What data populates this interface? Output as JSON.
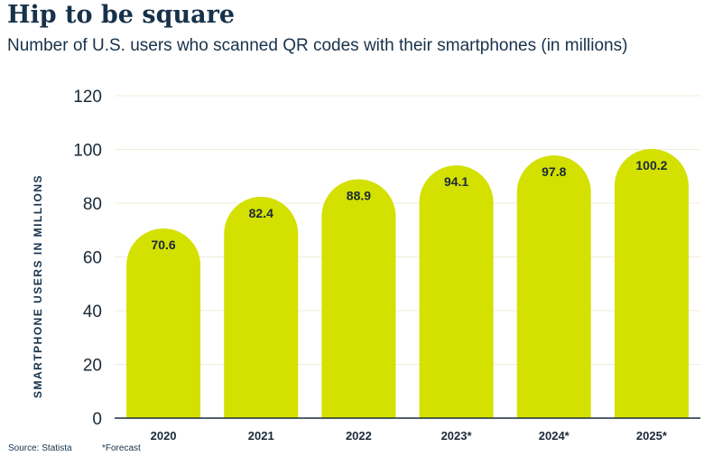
{
  "title": "Hip to be square",
  "subtitle": "Number of U.S. users who scanned QR codes with their smartphones (in millions)",
  "footer": {
    "source": "Source: Statista",
    "note": "*Forecast"
  },
  "colors": {
    "bar": "#d4e000",
    "text": "#17324a",
    "grid": "#f0ecd8",
    "axis": "#1b2a38"
  },
  "chart_data": {
    "type": "bar",
    "title": "Hip to be square",
    "subtitle": "Number of U.S. users who scanned QR codes with their smartphones (in millions)",
    "xlabel": "",
    "ylabel": "SMARTPHONE USERS IN MILLIONS",
    "categories": [
      "2020",
      "2021",
      "2022",
      "2023*",
      "2024*",
      "2025*"
    ],
    "values": [
      70.6,
      82.4,
      88.9,
      94.1,
      97.8,
      100.2
    ],
    "data_labels": [
      "70.6",
      "82.4",
      "88.9",
      "94.1",
      "97.8",
      "100.2"
    ],
    "ylim": [
      0,
      120
    ],
    "yticks": [
      0,
      20,
      40,
      60,
      80,
      100,
      120
    ],
    "grid": true,
    "legend": "none"
  }
}
